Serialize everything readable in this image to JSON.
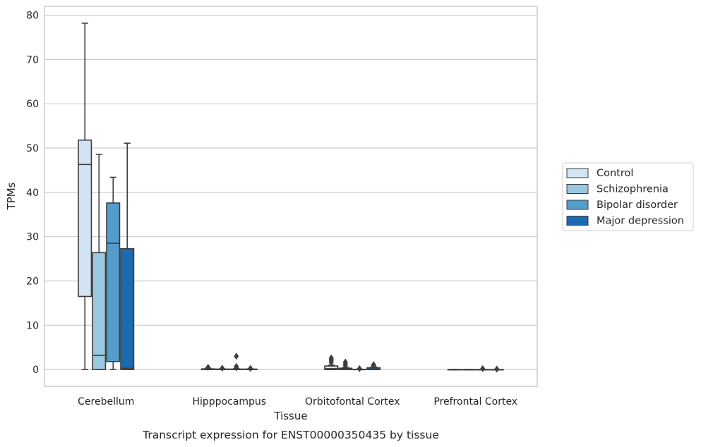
{
  "chart_data": {
    "type": "box",
    "xlabel": "Tissue",
    "ylabel": "TPMs",
    "caption": "Transcript expression for ENST00000350435 by tissue",
    "ylim": [
      -3.8,
      82
    ],
    "yticks": [
      0,
      10,
      20,
      30,
      40,
      50,
      60,
      70,
      80
    ],
    "grid": "horizontal",
    "legend_position": "right",
    "categories": [
      "Cerebellum",
      "Hipppocampus",
      "Orbitofontal Cortex",
      "Prefrontal Cortex"
    ],
    "series": [
      {
        "name": "Control",
        "color": "#d3e3f3",
        "boxes": [
          {
            "whislo": 0,
            "q1": 16.5,
            "med": 46.3,
            "q3": 51.8,
            "whishi": 78.2,
            "fliers": []
          },
          {
            "whislo": 0,
            "q1": 0,
            "med": 0.05,
            "q3": 0.15,
            "whishi": 0.3,
            "fliers": [
              0.5
            ]
          },
          {
            "whislo": 0,
            "q1": 0,
            "med": 0.2,
            "q3": 0.8,
            "whishi": 1.0,
            "fliers": [
              1.6,
              2.0,
              2.3,
              2.6
            ]
          },
          {
            "whislo": 0,
            "q1": 0,
            "med": 0,
            "q3": 0,
            "whishi": 0,
            "fliers": []
          }
        ]
      },
      {
        "name": "Schizophrenia",
        "color": "#9ac8e0",
        "boxes": [
          {
            "whislo": 0,
            "q1": 0,
            "med": 3.2,
            "q3": 26.4,
            "whishi": 48.6,
            "fliers": []
          },
          {
            "whislo": 0,
            "q1": 0,
            "med": 0.05,
            "q3": 0.1,
            "whishi": 0.15,
            "fliers": [
              0.3
            ]
          },
          {
            "whislo": 0,
            "q1": 0,
            "med": 0.1,
            "q3": 0.3,
            "whishi": 0.5,
            "fliers": [
              0.9,
              1.3,
              1.7
            ]
          },
          {
            "whislo": 0,
            "q1": 0,
            "med": 0,
            "q3": 0,
            "whishi": 0,
            "fliers": []
          }
        ]
      },
      {
        "name": "Bipolar disorder",
        "color": "#529dcc",
        "boxes": [
          {
            "whislo": 0,
            "q1": 1.8,
            "med": 28.5,
            "q3": 37.6,
            "whishi": 43.4,
            "fliers": []
          },
          {
            "whislo": 0,
            "q1": 0,
            "med": 0.05,
            "q3": 0.1,
            "whishi": 0.2,
            "fliers": [
              0.4,
              0.7,
              3.0
            ]
          },
          {
            "whislo": 0,
            "q1": 0,
            "med": 0,
            "q3": 0.05,
            "whishi": 0.1,
            "fliers": [
              0.2
            ]
          },
          {
            "whislo": 0,
            "q1": 0,
            "med": 0,
            "q3": 0,
            "whishi": 0,
            "fliers": [
              0.2
            ]
          }
        ]
      },
      {
        "name": "Major depression",
        "color": "#1c6aaf",
        "boxes": [
          {
            "whislo": 0,
            "q1": 0,
            "med": 0.3,
            "q3": 27.3,
            "whishi": 51.1,
            "fliers": []
          },
          {
            "whislo": 0,
            "q1": 0,
            "med": 0.05,
            "q3": 0.1,
            "whishi": 0.15,
            "fliers": [
              0.25
            ]
          },
          {
            "whislo": 0,
            "q1": 0,
            "med": 0.1,
            "q3": 0.4,
            "whishi": 0.6,
            "fliers": [
              0.9,
              1.1
            ]
          },
          {
            "whislo": 0,
            "q1": 0,
            "med": 0,
            "q3": 0,
            "whishi": 0,
            "fliers": [
              0.1
            ]
          }
        ]
      }
    ]
  }
}
